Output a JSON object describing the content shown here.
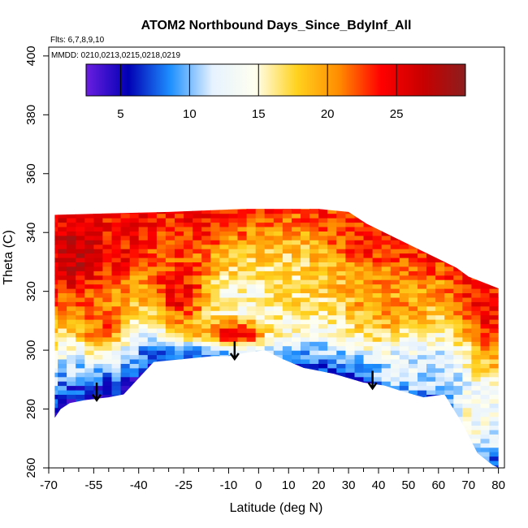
{
  "chart_data": {
    "type": "heatmap",
    "title": "ATOM2 Northbound Days_Since_BdyInf_All",
    "flights_note": "Flts: 6,7,8,9,10",
    "dates_note": "MMDD: 0210,0213,0215,0218,0219",
    "xlabel": "Latitude (deg N)",
    "ylabel": "Theta (C)",
    "xlim": [
      -70,
      82
    ],
    "ylim": [
      260,
      403
    ],
    "x_ticks": [
      -70,
      -55,
      -40,
      -25,
      -10,
      0,
      10,
      20,
      30,
      40,
      50,
      60,
      70,
      80
    ],
    "x_minor_ticks": [
      -65,
      -60,
      -50,
      -45,
      -35,
      -30,
      -20,
      -15,
      -5,
      5,
      15,
      25,
      35,
      45,
      55,
      65,
      75
    ],
    "y_ticks": [
      260,
      280,
      300,
      320,
      340,
      360,
      380,
      400
    ],
    "colorbar": {
      "min": 2.5,
      "max": 30,
      "ticks": [
        5,
        10,
        15,
        20,
        25
      ],
      "stops": [
        "#6a1ee0",
        "#0000b4",
        "#1e90ff",
        "#e6f2ff",
        "#fffff0",
        "#ffd21e",
        "#ff8c00",
        "#ff0000",
        "#c80000",
        "#8c1e1e"
      ]
    },
    "surface": {
      "description": "lower boundary of sampled data (theta of lowest measurements)",
      "lat": [
        -68,
        -66,
        -63,
        -58,
        -50,
        -45,
        -35,
        -25,
        -15,
        -10,
        -5,
        2,
        8,
        15,
        25,
        35,
        42,
        48,
        55,
        62,
        68,
        73,
        78,
        80
      ],
      "theta": [
        277,
        280,
        282,
        283,
        284,
        285,
        296,
        297,
        298,
        298,
        299,
        300,
        297,
        294,
        292,
        289,
        288,
        286,
        284,
        285,
        275,
        265,
        261,
        260
      ]
    },
    "top": {
      "description": "upper boundary of sampled data",
      "lat": [
        -68,
        -30,
        -5,
        5,
        20,
        30,
        36,
        42,
        48,
        54,
        60,
        66,
        70,
        75,
        80
      ],
      "theta": [
        346,
        347,
        348,
        348,
        348,
        347,
        343,
        340,
        337,
        334,
        331,
        328,
        325,
        323,
        321
      ]
    },
    "field_regions": [
      {
        "lat": [
          -68,
          -55
        ],
        "theta": [
          320,
          346
        ],
        "days": 27
      },
      {
        "lat": [
          -60,
          -45
        ],
        "theta": [
          300,
          320
        ],
        "days": 22
      },
      {
        "lat": [
          -35,
          -18
        ],
        "theta": [
          305,
          335
        ],
        "days": 25
      },
      {
        "lat": [
          -20,
          5
        ],
        "theta": [
          300,
          310
        ],
        "days": 26
      },
      {
        "lat": [
          -45,
          10
        ],
        "theta": [
          296,
          300
        ],
        "days": 9
      },
      {
        "lat": [
          -5,
          25
        ],
        "theta": [
          305,
          345
        ],
        "days": 17
      },
      {
        "lat": [
          25,
          60
        ],
        "theta": [
          300,
          330
        ],
        "days": 20
      },
      {
        "lat": [
          40,
          60
        ],
        "theta": [
          285,
          300
        ],
        "days": 12
      },
      {
        "lat": [
          60,
          80
        ],
        "theta": [
          262,
          290
        ],
        "days": 14
      },
      {
        "lat": [
          70,
          78
        ],
        "theta": [
          310,
          323
        ],
        "days": 24
      }
    ],
    "arrows": [
      {
        "lat": -54,
        "theta_start": 289,
        "theta_end": 283
      },
      {
        "lat": -8,
        "theta_start": 303,
        "theta_end": 297
      },
      {
        "lat": 38,
        "theta_start": 293,
        "theta_end": 287
      }
    ]
  }
}
